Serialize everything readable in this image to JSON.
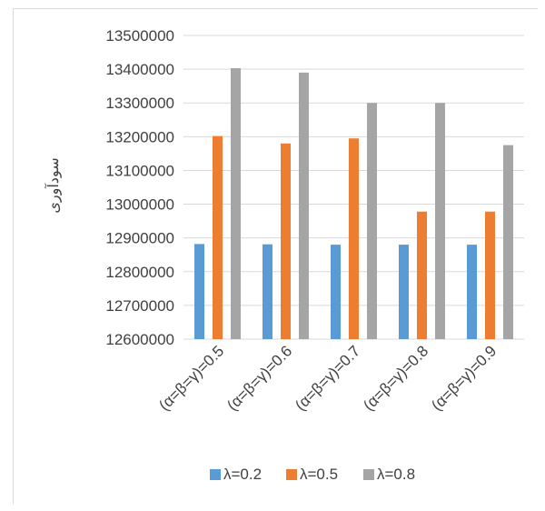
{
  "chart_data": {
    "type": "bar",
    "title": "",
    "xlabel": "",
    "ylabel": "سودآوری",
    "ylim": [
      12600000,
      13500000
    ],
    "yticks": [
      12600000,
      12700000,
      12800000,
      12900000,
      13000000,
      13100000,
      13200000,
      13300000,
      13400000,
      13500000
    ],
    "ytick_labels": [
      "12600000",
      "12700000",
      "12800000",
      "12900000",
      "13000000",
      "13100000",
      "13200000",
      "13300000",
      "13400000",
      "13500000"
    ],
    "grid": true,
    "legend_position": "bottom",
    "categories": [
      "(α=β=γ)=0.5",
      "(α=β=γ)=0.6",
      "(α=β=γ)=0.7",
      "(α=β=γ)=0.8",
      "(α=β=γ)=0.9"
    ],
    "series": [
      {
        "name": "λ=0.2",
        "color": "#5b9bd5",
        "values": [
          12882000,
          12881000,
          12880000,
          12880000,
          12880000
        ]
      },
      {
        "name": "λ=0.5",
        "color": "#ed7d31",
        "values": [
          13202000,
          13180000,
          13195000,
          12978000,
          12978000
        ]
      },
      {
        "name": "λ=0.8",
        "color": "#a5a5a5",
        "values": [
          13403000,
          13390000,
          13300000,
          13300000,
          13175000
        ]
      }
    ]
  }
}
